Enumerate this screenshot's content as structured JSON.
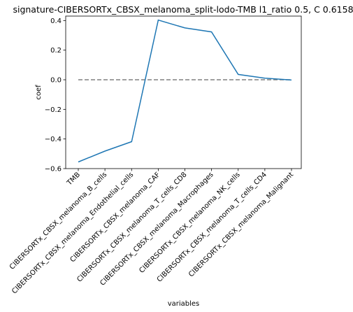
{
  "chart_data": {
    "type": "line",
    "title": "signature-CIBERSORTx_CBSX_melanoma_split-lodo-TMB l1_ratio 0.5, C 0.6158",
    "xlabel": "variables",
    "ylabel": "coef",
    "categories": [
      "TMB",
      "CIBERSORTx_CBSX_melanoma_B_cells",
      "CIBERSORTx_CBSX_melanoma_Endothelial_cells",
      "CIBERSORTx_CBSX_melanoma_CAF",
      "CIBERSORTx_CBSX_melanoma_T_cells_CD8",
      "CIBERSORTx_CBSX_melanoma_Macrophages",
      "CIBERSORTx_CBSX_melanoma_NK_cells",
      "CIBERSORTx_CBSX_melanoma_T_cells_CD4",
      "CIBERSORTx_CBSX_melanoma_Malignant"
    ],
    "series": [
      {
        "values": [
          -0.555,
          -0.482,
          -0.418,
          0.403,
          0.35,
          0.323,
          0.036,
          0.011,
          -0.002
        ],
        "color": "#1f77b4"
      }
    ],
    "reference_line": {
      "y": 0,
      "style": "dashed",
      "color": "#808080"
    },
    "yticks": [
      "0.4",
      "0.2",
      "0.0",
      "−0.2",
      "−0.4",
      "−0.6"
    ],
    "ytick_values": [
      0.4,
      0.2,
      0.0,
      -0.2,
      -0.4,
      -0.6
    ],
    "ylim": [
      -0.6,
      0.43
    ],
    "grid": false,
    "legend": "none"
  }
}
